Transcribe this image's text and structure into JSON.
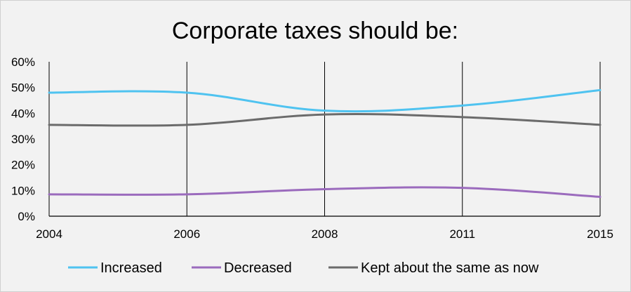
{
  "chart_data": {
    "type": "line",
    "title": "Corporate taxes should be:",
    "x": [
      "2004",
      "2006",
      "2008",
      "2011",
      "2015"
    ],
    "y_ticks": [
      "0%",
      "10%",
      "20%",
      "30%",
      "40%",
      "50%",
      "60%"
    ],
    "ylim": [
      0,
      60
    ],
    "grid": "vertical lines at x categories",
    "legend_position": "bottom",
    "series": [
      {
        "name": "Increased",
        "color": "#4fc3f0",
        "values": [
          48,
          48,
          41,
          43,
          49
        ]
      },
      {
        "name": "Decreased",
        "color": "#9b6bbd",
        "values": [
          8.5,
          8.5,
          10.5,
          11,
          7.5
        ]
      },
      {
        "name": "Kept about the same as now",
        "color": "#6b6b6b",
        "values": [
          35.5,
          35.5,
          39.5,
          38.5,
          35.5
        ]
      }
    ]
  }
}
